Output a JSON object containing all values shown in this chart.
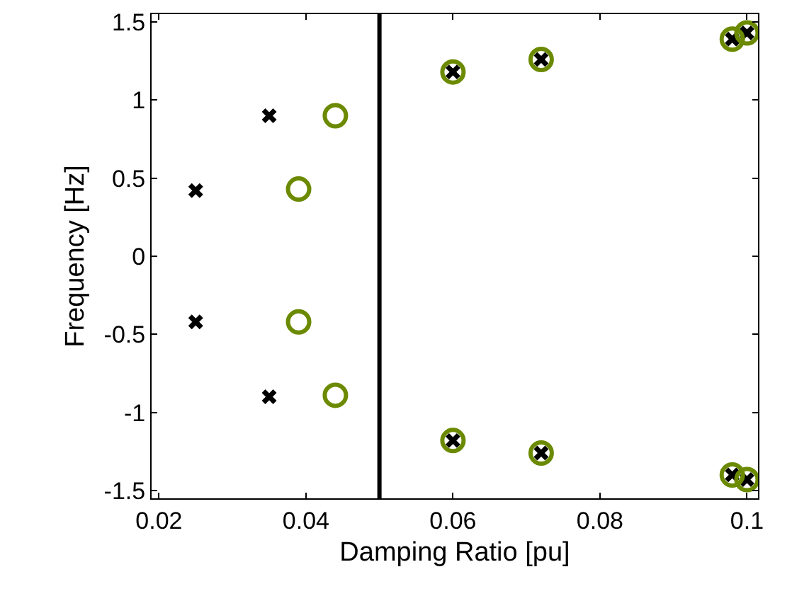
{
  "chart_data": {
    "type": "scatter",
    "xlabel": "Damping Ratio [pu]",
    "ylabel": "Frequency [Hz]",
    "series": [
      {
        "marker": "cross",
        "color": "#000000",
        "x": [
          0.025,
          0.025,
          0.035,
          0.035,
          0.06,
          0.06,
          0.072,
          0.072,
          0.098,
          0.098,
          0.1,
          0.1
        ],
        "values": [
          0.42,
          -0.42,
          0.9,
          -0.9,
          1.18,
          -1.18,
          1.26,
          -1.26,
          1.39,
          -1.4,
          1.43,
          -1.43
        ]
      },
      {
        "marker": "circle",
        "color": "#6b8a00",
        "x": [
          0.039,
          0.039,
          0.044,
          0.044,
          0.06,
          0.06,
          0.072,
          0.072,
          0.098,
          0.098,
          0.1,
          0.1
        ],
        "values": [
          0.43,
          -0.42,
          0.9,
          -0.89,
          1.18,
          -1.18,
          1.26,
          -1.26,
          1.39,
          -1.4,
          1.43,
          -1.43
        ]
      }
    ],
    "xlim": [
      0.019,
      0.1015
    ],
    "ylim": [
      -1.55,
      1.55
    ],
    "xticks": [
      0.02,
      0.04,
      0.06,
      0.08,
      0.1
    ],
    "yticks": [
      -1.5,
      -1,
      -0.5,
      0,
      0.5,
      1,
      1.5
    ],
    "ref_lines": [
      {
        "axis": "x",
        "value": 0.05,
        "color": "#000000",
        "line_style": "solid"
      }
    ]
  }
}
